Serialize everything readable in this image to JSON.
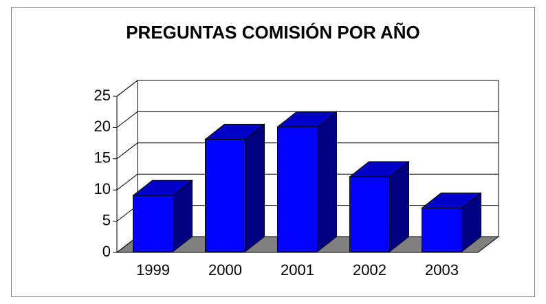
{
  "chart_data": {
    "type": "bar3d",
    "title": "PREGUNTAS COMISIÓN POR AÑO",
    "categories": [
      "1999",
      "2000",
      "2001",
      "2002",
      "2003"
    ],
    "values": [
      9,
      18,
      20,
      12,
      7
    ],
    "color": "#0000ff",
    "ylim": [
      0,
      25
    ],
    "yticks": [
      0,
      5,
      10,
      15,
      20,
      25
    ],
    "grid": true
  }
}
